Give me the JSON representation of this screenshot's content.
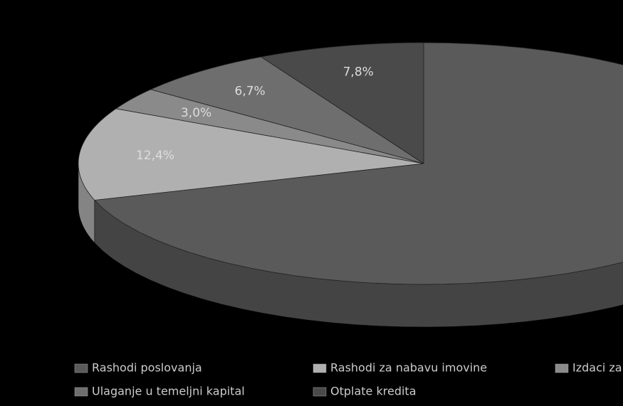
{
  "chart_data": {
    "type": "pie",
    "categories": [
      "Rashodi poslovanja",
      "Rashodi za nabavu imovine",
      "Izdaci za",
      "Ulaganje u temeljni kapital",
      "Otplate kredita"
    ],
    "values": [
      70.1,
      12.4,
      3.0,
      6.7,
      7.8
    ],
    "value_labels": [
      null,
      "12,4%",
      "3,0%",
      "6,7%",
      "7,8%"
    ],
    "colors": [
      "#5a5a5a",
      "#b0b0b0",
      "#8a8a8a",
      "#6e6e6e",
      "#4a4a4a"
    ]
  }
}
